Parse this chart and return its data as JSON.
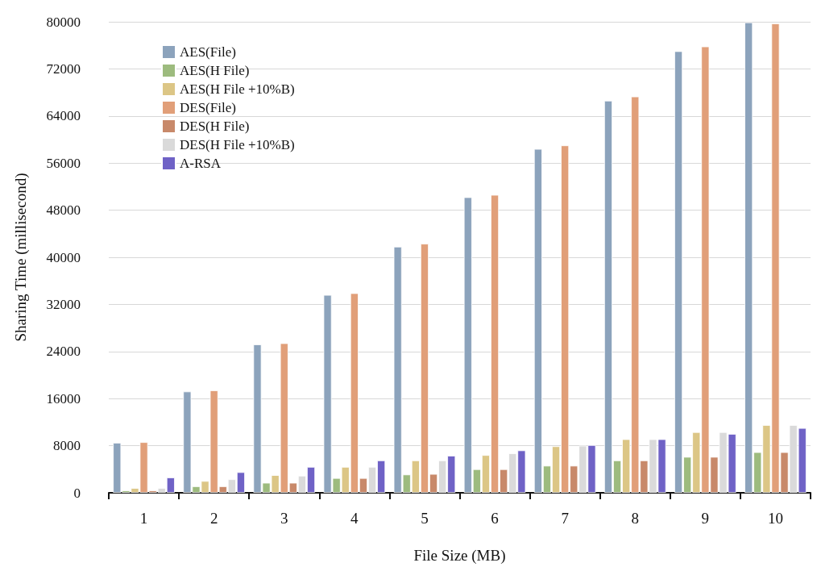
{
  "chart_data": {
    "type": "bar",
    "xlabel": "File Size (MB)",
    "ylabel": "Sharing Time (millisecond)",
    "categories": [
      "1",
      "2",
      "3",
      "4",
      "5",
      "6",
      "7",
      "8",
      "9",
      "10"
    ],
    "series": [
      {
        "name": "AES(File)",
        "color": "#8ca3bc",
        "values": [
          8500,
          17200,
          25200,
          33600,
          41800,
          50200,
          58400,
          66600,
          75000,
          79900
        ]
      },
      {
        "name": "AES(H File)",
        "color": "#9dbb7e",
        "values": [
          400,
          1100,
          1700,
          2500,
          3100,
          4000,
          4600,
          5500,
          6100,
          6900
        ]
      },
      {
        "name": "AES(H File +10%B)",
        "color": "#dcc686",
        "values": [
          800,
          2000,
          3000,
          4400,
          5500,
          6400,
          7900,
          9100,
          10300,
          11500
        ]
      },
      {
        "name": "DES(File)",
        "color": "#e19f79",
        "values": [
          8600,
          17400,
          25400,
          33900,
          42300,
          50600,
          59000,
          67300,
          75800,
          79700
        ]
      },
      {
        "name": "DES(H File)",
        "color": "#c8896a",
        "values": [
          400,
          1100,
          1700,
          2500,
          3200,
          4000,
          4600,
          5500,
          6100,
          6900
        ]
      },
      {
        "name": "DES(H File +10%B)",
        "color": "#dadada",
        "values": [
          800,
          2300,
          2900,
          4400,
          5500,
          6700,
          8000,
          9100,
          10300,
          11500
        ]
      },
      {
        "name": "A-RSA",
        "color": "#6f62c6",
        "values": [
          2600,
          3500,
          4400,
          5500,
          6300,
          7200,
          8100,
          9100,
          10000,
          11000
        ]
      }
    ],
    "ylim": [
      0,
      80000
    ],
    "yticks": [
      0,
      8000,
      16000,
      24000,
      32000,
      40000,
      48000,
      56000,
      64000,
      72000,
      80000
    ],
    "grid": "y",
    "legend": "top left"
  }
}
